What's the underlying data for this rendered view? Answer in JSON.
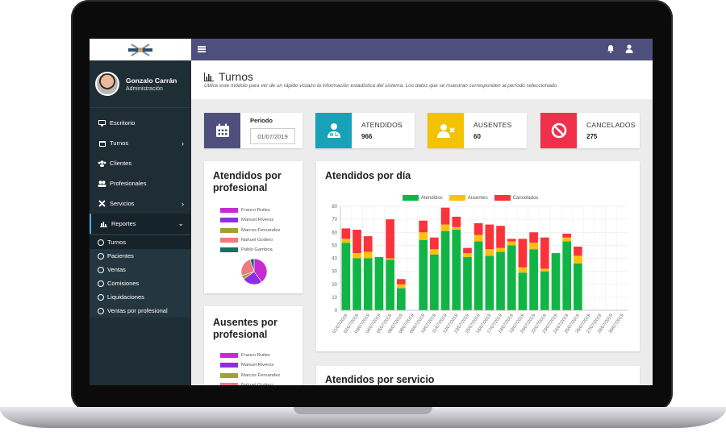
{
  "sidebar": {
    "user_name": "Gonzalo Carrán",
    "user_role": "Administración",
    "items": [
      {
        "label": "Escritorio"
      },
      {
        "label": "Turnos"
      },
      {
        "label": "Clientes"
      },
      {
        "label": "Profesionales"
      },
      {
        "label": "Servicios"
      },
      {
        "label": "Reportes"
      }
    ],
    "sub_items": [
      {
        "label": "Turnos"
      },
      {
        "label": "Pacientes"
      },
      {
        "label": "Ventas"
      },
      {
        "label": "Comisiones"
      },
      {
        "label": "Liquidaciones"
      },
      {
        "label": "Ventas por profesional"
      }
    ]
  },
  "header": {
    "title": "Turnos",
    "subtitle": "Utilice este módulo para ver de un rápido vistazo la información estadística del sistema. Los datos que se muestran corresponden al período seleccionado."
  },
  "period": {
    "label": "Período",
    "value": "01/07/2019"
  },
  "stats": {
    "atendidos": {
      "label": "ATENDIDOS",
      "value": "966"
    },
    "ausentes": {
      "label": "AUSENTES",
      "value": "60"
    },
    "cancelados": {
      "label": "CANCELADOS",
      "value": "275"
    }
  },
  "colors": {
    "sidebar": "#1f2d35",
    "topbar": "#4f4f7d",
    "period_box": "#4f4f7d",
    "atendidos_box": "#17a2b8",
    "ausentes_box": "#f3c200",
    "cancelados_box": "#f0304b",
    "bar_atendidos": "#11b545",
    "bar_ausentes": "#fdc00e",
    "bar_cancelados": "#f8343b"
  },
  "panels": {
    "atendidos_prof": {
      "title_line1": "Atendidos por",
      "title_line2": "profesional",
      "legend": [
        {
          "name": "Franco Ruiles",
          "color": "#c82ad1"
        },
        {
          "name": "Manuel Riveros",
          "color": "#8d2ee6"
        },
        {
          "name": "Marcos Fernandez",
          "color": "#a3a12c"
        },
        {
          "name": "Nahuel Godero",
          "color": "#f07a80"
        },
        {
          "name": "Pablo Gamboa",
          "color": "#16715f"
        }
      ]
    },
    "ausentes_prof": {
      "title_line1": "Ausentes por",
      "title_line2": "profesional",
      "legend": [
        {
          "name": "Franco Ruiles",
          "color": "#c82ad1"
        },
        {
          "name": "Manuel Riveros",
          "color": "#8d2ee6"
        },
        {
          "name": "Marcos Fernandez",
          "color": "#a3a12c"
        },
        {
          "name": "Nahuel Godero",
          "color": "#f07a80"
        }
      ]
    },
    "atendidos_dia_title": "Atendidos por día",
    "atendidos_servicio_title": "Atendidos por servicio"
  },
  "chart_data": [
    {
      "type": "pie",
      "labels": [
        "Franco Ruiles",
        "Manuel Riveros",
        "Marcos Fernandez",
        "Nahuel Godero",
        "Pablo Gamboa"
      ],
      "values": [
        40,
        25,
        5,
        25,
        5
      ],
      "colors": [
        "#c82ad1",
        "#8d2ee6",
        "#a3a12c",
        "#f07a80",
        "#16715f"
      ]
    },
    {
      "type": "bar",
      "stacked": true,
      "title": "Atendidos por día",
      "categories": [
        "01/07/2019",
        "02/07/2019",
        "03/07/2019",
        "04/07/2019",
        "05/07/2019",
        "06/07/2019",
        "08/07/2019",
        "09/07/2019",
        "10/07/2019",
        "11/07/2019",
        "12/07/2019",
        "13/07/2019",
        "15/07/2019",
        "16/07/2019",
        "17/07/2019",
        "18/07/2019",
        "19/07/2019",
        "20/07/2019",
        "22/07/2019",
        "23/07/2019",
        "24/07/2019",
        "25/07/2019",
        "26/07/2019",
        "27/07/2019",
        "29/07/2019",
        "30/07/2019"
      ],
      "x_tick_labels": [
        "01/07/2019",
        "02/07/2019",
        "03/07/2019",
        "04/07/2019",
        "05/07/2019",
        "06/07/2019",
        "08/07/2019",
        "09/07/2019",
        "10/07/2019",
        "11/07/2019",
        "12/07/2019",
        "13/07/2019",
        "15/07/2019",
        "16/07/2019",
        "17/07/2019",
        "18/07/2019",
        "19/07/2019",
        "20/07/2019",
        "22/07/2019",
        "23/07/2019",
        "24/07/2019",
        "25/07/2019",
        "26/07/2019",
        "27/07/2019",
        "29/07/2019",
        "30/07/2019"
      ],
      "series": [
        {
          "name": "Atendidos",
          "color": "#11b545",
          "values": [
            52,
            40,
            40,
            41,
            39,
            17,
            0,
            54,
            43,
            61,
            62,
            41,
            53,
            42,
            45,
            50,
            29,
            47,
            30,
            44,
            53,
            36,
            0,
            0,
            0,
            0
          ]
        },
        {
          "name": "Ausentes",
          "color": "#fdc00e",
          "values": [
            3,
            4,
            5,
            0,
            1,
            3,
            0,
            6,
            4,
            5,
            2,
            3,
            5,
            5,
            3,
            3,
            4,
            5,
            2,
            0,
            3,
            6,
            0,
            0,
            0,
            0
          ]
        },
        {
          "name": "Cancelados",
          "color": "#f8343b",
          "values": [
            8,
            18,
            12,
            0,
            30,
            4,
            0,
            9,
            9,
            13,
            8,
            4,
            9,
            19,
            17,
            2,
            22,
            8,
            24,
            0,
            3,
            7,
            0,
            0,
            0,
            0
          ]
        }
      ],
      "ylim": [
        0,
        80
      ],
      "yticks": [
        0,
        10,
        20,
        30,
        40,
        50,
        60,
        70,
        80
      ],
      "legend_position": "top"
    }
  ]
}
